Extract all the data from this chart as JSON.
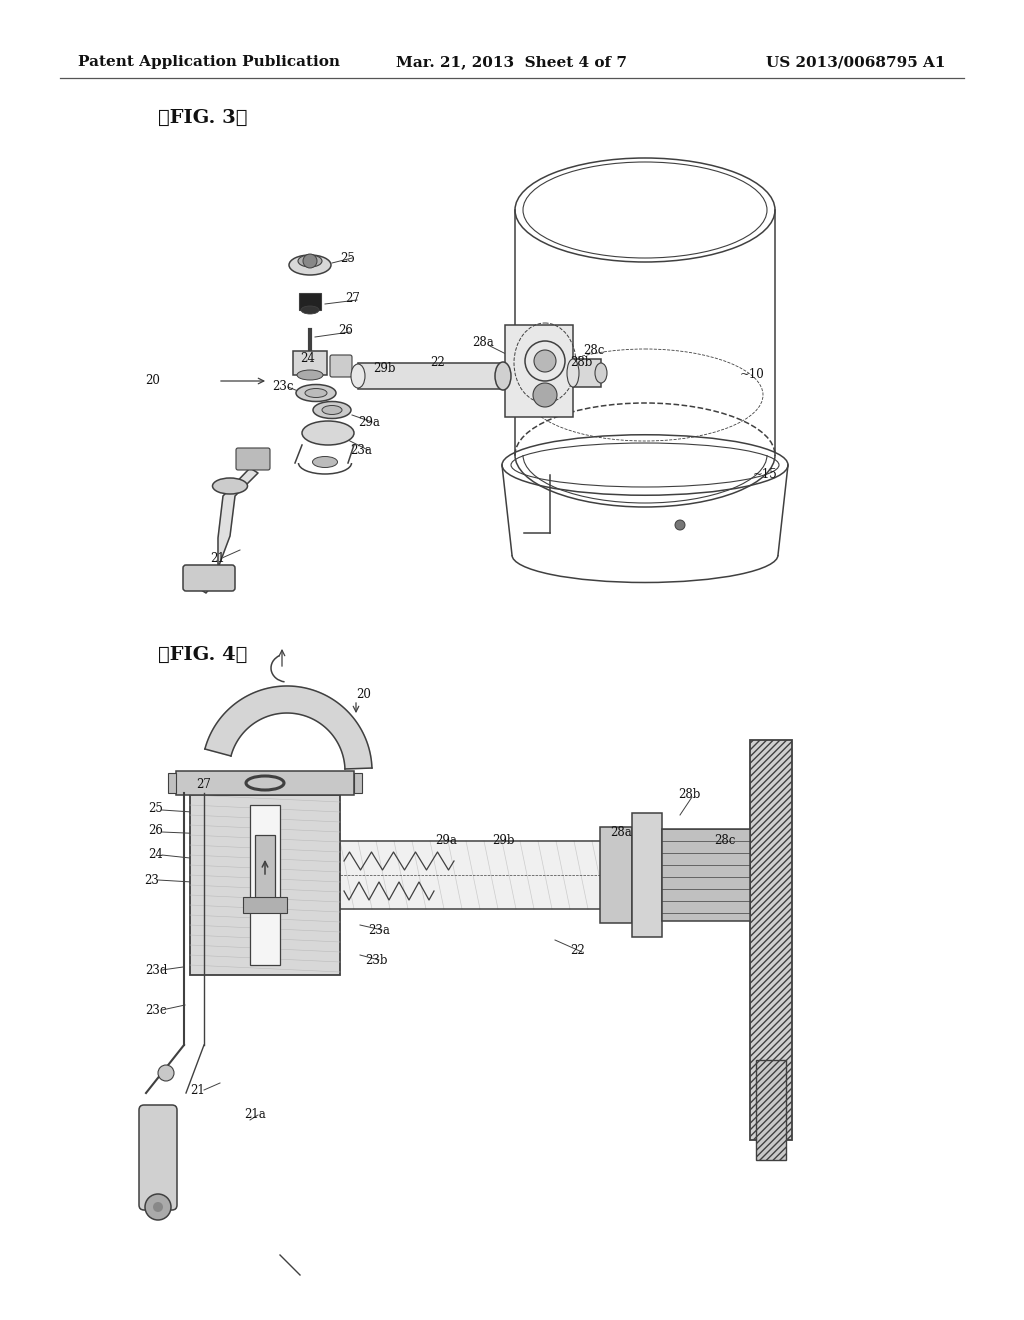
{
  "bg": "#ffffff",
  "lc": "#404040",
  "tc": "#111111",
  "header_left": "Patent Application Publication",
  "header_center": "Mar. 21, 2013  Sheet 4 of 7",
  "header_right": "US 2013/0068795 A1",
  "fig3_label": "【FIG. 3】",
  "fig4_label": "【FIG. 4】",
  "header_fs": 11,
  "fig_label_fs": 14,
  "anno_fs": 8.5
}
